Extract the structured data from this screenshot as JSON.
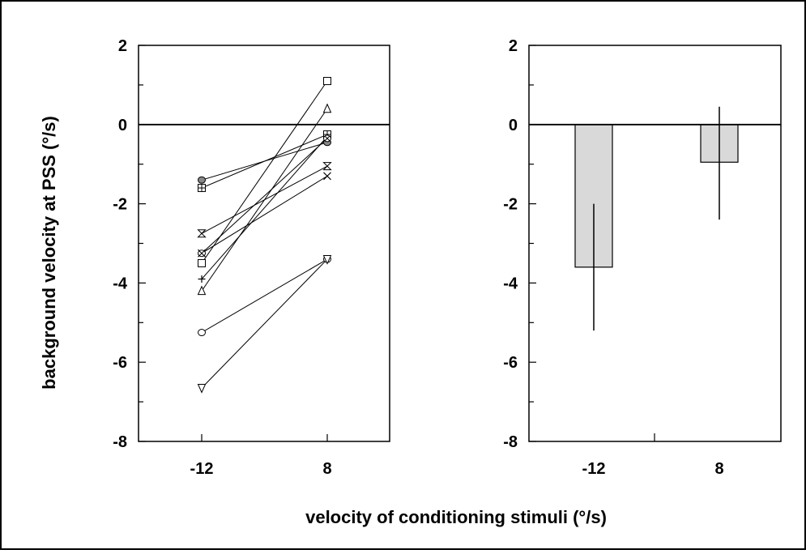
{
  "figure": {
    "ylabel": "background velocity at PSS (°/s)",
    "xlabel": "velocity of conditioning stimuli (°/s)"
  },
  "chart_data": [
    {
      "type": "line",
      "panel": "left",
      "categories": [
        "-12",
        "8"
      ],
      "x": [
        -12,
        8
      ],
      "ylim": [
        -8,
        2
      ],
      "yticks": [
        "2",
        "0",
        "-2",
        "-4",
        "-6",
        "-8"
      ],
      "zero_line": true,
      "grid": false,
      "series": [
        {
          "marker": "square",
          "values": [
            -3.5,
            1.1
          ]
        },
        {
          "marker": "triangle-up",
          "values": [
            -4.2,
            0.4
          ]
        },
        {
          "marker": "plus",
          "values": [
            -3.9,
            -0.3
          ]
        },
        {
          "marker": "bowtie",
          "values": [
            -2.75,
            -1.05
          ]
        },
        {
          "marker": "square-crossed",
          "values": [
            -1.6,
            -0.25
          ]
        },
        {
          "marker": "circle-filled",
          "values": [
            -1.4,
            -0.45
          ]
        },
        {
          "marker": "x",
          "values": [
            -3.25,
            -1.3
          ]
        },
        {
          "marker": "circle-x",
          "values": [
            -3.25,
            -0.35
          ]
        },
        {
          "marker": "circle",
          "values": [
            -5.25,
            -3.4
          ]
        },
        {
          "marker": "triangle-down",
          "values": [
            -6.65,
            -3.4
          ]
        }
      ]
    },
    {
      "type": "bar",
      "panel": "right",
      "categories": [
        "-12",
        "8"
      ],
      "values": [
        -3.6,
        -0.95
      ],
      "error_low": [
        -5.2,
        -2.4
      ],
      "error_high": [
        -2.0,
        0.45
      ],
      "ylim": [
        -8,
        2
      ],
      "yticks": [
        "2",
        "0",
        "-2",
        "-4",
        "-6",
        "-8"
      ],
      "bar_color": "#d9d9d9",
      "zero_line": true,
      "grid": false
    }
  ]
}
